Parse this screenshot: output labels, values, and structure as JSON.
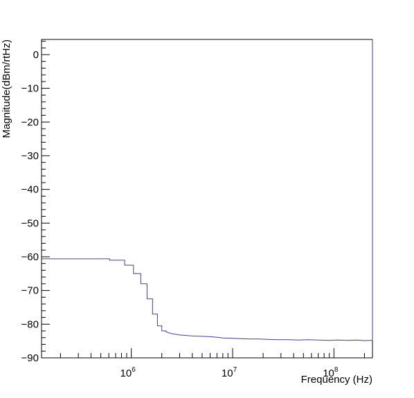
{
  "chart_data": {
    "type": "line",
    "title": "",
    "xlabel": "Frequency (Hz)",
    "ylabel": "Magnitude(dBm/rtHz)",
    "x_scale": "log",
    "xlim": [
      130000,
      240000000
    ],
    "ylim": [
      -90,
      4.5
    ],
    "grid": false,
    "legend": "none",
    "y_ticks": [
      "0",
      "−10",
      "−20",
      "−30",
      "−40",
      "−50",
      "−60",
      "−70",
      "−80",
      "−90"
    ],
    "x_ticks": [
      {
        "base": "10",
        "exp": "6"
      },
      {
        "base": "10",
        "exp": "7"
      },
      {
        "base": "10",
        "exp": "8"
      }
    ],
    "line_color": "#3d3d9e",
    "series": [
      {
        "x": [
          130000,
          610000,
          610000,
          860000,
          860000,
          1050000,
          1050000,
          1240000,
          1240000,
          1430000,
          1430000,
          1620000,
          1620000,
          1810000,
          1810000,
          2000000,
          2000000,
          2200000,
          2200000,
          2500000,
          3000000,
          4000000,
          5000000,
          6000000,
          7000000,
          8000000,
          10000000,
          12000000,
          15000000,
          18000000,
          22000000,
          28000000,
          35000000,
          45000000,
          55000000,
          70000000,
          90000000,
          110000000,
          140000000,
          170000000,
          200000000,
          230000000,
          240000000,
          240000000
        ],
        "y": [
          -60.6,
          -60.6,
          -61.0,
          -61.0,
          -62.5,
          -62.5,
          -65.0,
          -65.0,
          -68.0,
          -68.0,
          -72.5,
          -72.5,
          -77.0,
          -77.0,
          -80.5,
          -80.5,
          -82.0,
          -82.0,
          -82.3,
          -82.8,
          -83.2,
          -83.5,
          -83.6,
          -83.7,
          -83.9,
          -84.1,
          -84.2,
          -84.3,
          -84.4,
          -84.4,
          -84.5,
          -84.6,
          -84.6,
          -84.7,
          -84.6,
          -84.7,
          -84.8,
          -84.7,
          -84.8,
          -84.7,
          -84.9,
          -84.8,
          -84.8,
          4.5
        ]
      }
    ]
  }
}
